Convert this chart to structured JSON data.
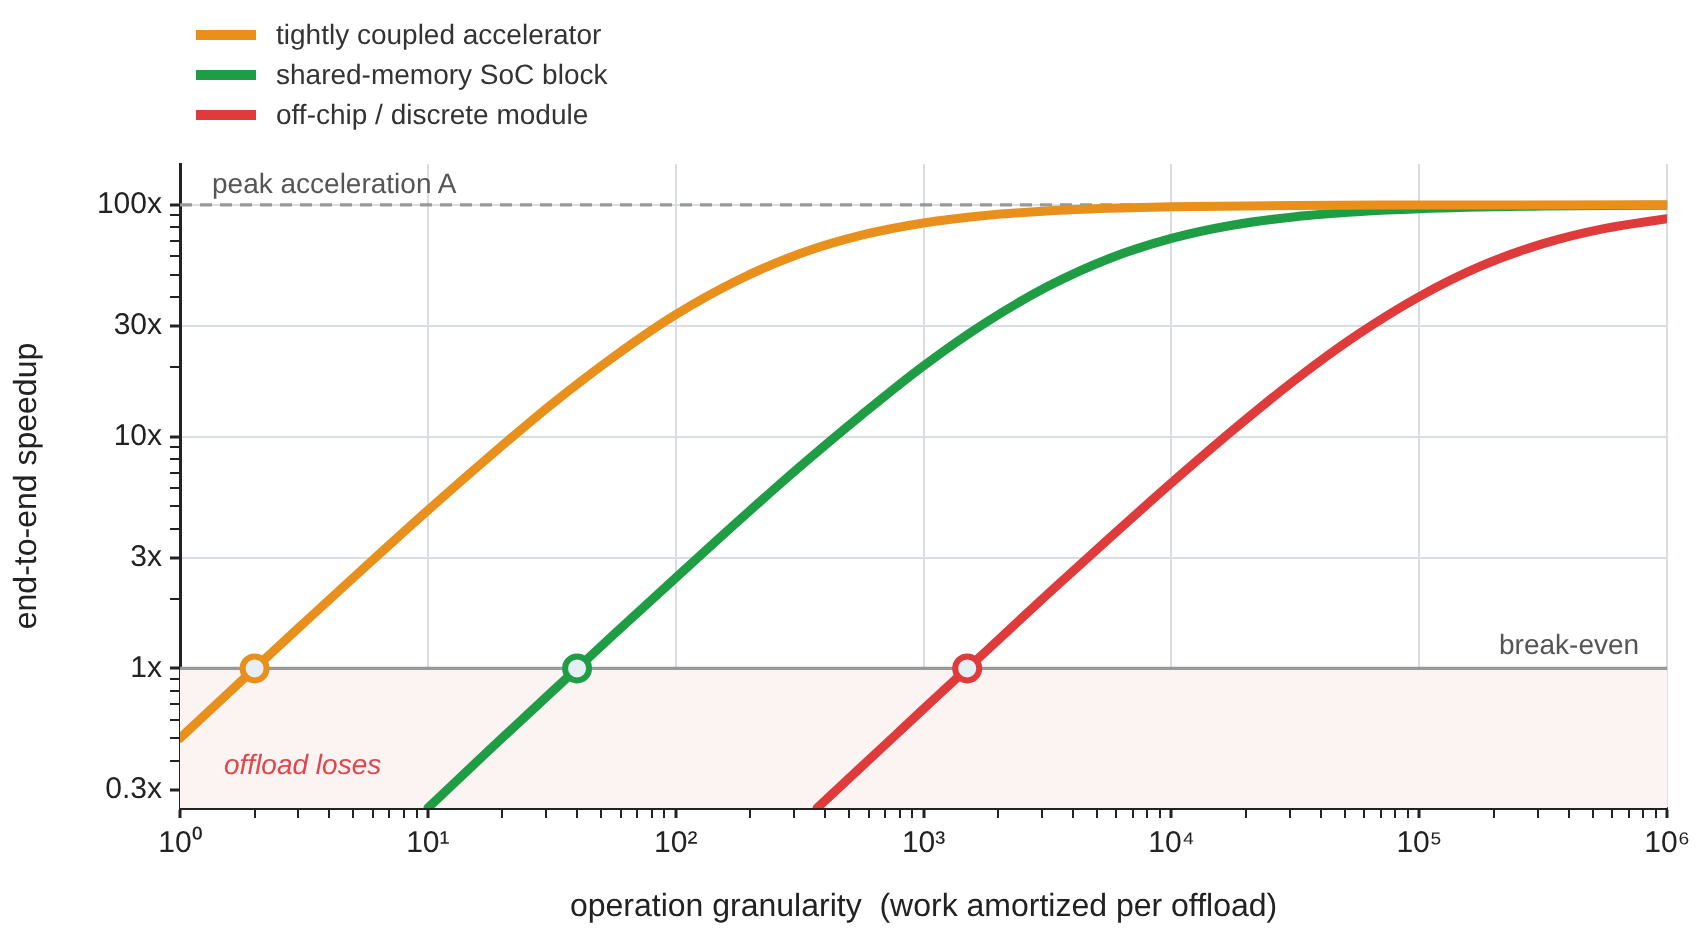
{
  "chart_data": {
    "type": "line",
    "xlabel": "operation granularity  (work amortized per offload)",
    "ylabel": "end-to-end speedup",
    "log": "xy",
    "grid": true,
    "legend": "top left",
    "marker": "none",
    "line_style": "solid",
    "xlim": [
      1,
      1000000
    ],
    "ylim": [
      0.25,
      150
    ],
    "xticks": [
      {
        "value": 1,
        "label": "10⁰"
      },
      {
        "value": 2,
        "label": null
      },
      {
        "value": 3,
        "label": null
      },
      {
        "value": 4,
        "label": null
      },
      {
        "value": 5,
        "label": null
      },
      {
        "value": 6,
        "label": null
      },
      {
        "value": 7,
        "label": null
      },
      {
        "value": 8,
        "label": null
      },
      {
        "value": 9,
        "label": null
      },
      {
        "value": 10,
        "label": "10¹"
      },
      {
        "value": 20,
        "label": null
      },
      {
        "value": 30,
        "label": null
      },
      {
        "value": 40,
        "label": null
      },
      {
        "value": 50,
        "label": null
      },
      {
        "value": 60,
        "label": null
      },
      {
        "value": 70,
        "label": null
      },
      {
        "value": 80,
        "label": null
      },
      {
        "value": 90,
        "label": null
      },
      {
        "value": 100,
        "label": "10²"
      },
      {
        "value": 200,
        "label": null
      },
      {
        "value": 300,
        "label": null
      },
      {
        "value": 400,
        "label": null
      },
      {
        "value": 500,
        "label": null
      },
      {
        "value": 600,
        "label": null
      },
      {
        "value": 700,
        "label": null
      },
      {
        "value": 800,
        "label": null
      },
      {
        "value": 900,
        "label": null
      },
      {
        "value": 1000,
        "label": "10³"
      },
      {
        "value": 2000,
        "label": null
      },
      {
        "value": 3000,
        "label": null
      },
      {
        "value": 4000,
        "label": null
      },
      {
        "value": 5000,
        "label": null
      },
      {
        "value": 6000,
        "label": null
      },
      {
        "value": 7000,
        "label": null
      },
      {
        "value": 8000,
        "label": null
      },
      {
        "value": 9000,
        "label": null
      },
      {
        "value": 10000,
        "label": "10⁴"
      },
      {
        "value": 20000,
        "label": null
      },
      {
        "value": 30000,
        "label": null
      },
      {
        "value": 40000,
        "label": null
      },
      {
        "value": 50000,
        "label": null
      },
      {
        "value": 60000,
        "label": null
      },
      {
        "value": 70000,
        "label": null
      },
      {
        "value": 80000,
        "label": null
      },
      {
        "value": 90000,
        "label": null
      },
      {
        "value": 100000,
        "label": "10⁵"
      },
      {
        "value": 200000,
        "label": null
      },
      {
        "value": 300000,
        "label": null
      },
      {
        "value": 400000,
        "label": null
      },
      {
        "value": 500000,
        "label": null
      },
      {
        "value": 600000,
        "label": null
      },
      {
        "value": 700000,
        "label": null
      },
      {
        "value": 800000,
        "label": null
      },
      {
        "value": 900000,
        "label": null
      },
      {
        "value": 1000000,
        "label": "10⁶"
      }
    ],
    "yticks": [
      {
        "value": 0.3,
        "label": "0.3x"
      },
      {
        "value": 0.4,
        "label": null
      },
      {
        "value": 0.5,
        "label": null
      },
      {
        "value": 0.6,
        "label": null
      },
      {
        "value": 0.7,
        "label": null
      },
      {
        "value": 0.8,
        "label": null
      },
      {
        "value": 0.9,
        "label": null
      },
      {
        "value": 1,
        "label": "1x"
      },
      {
        "value": 2,
        "label": null
      },
      {
        "value": 3,
        "label": "3x"
      },
      {
        "value": 4,
        "label": null
      },
      {
        "value": 5,
        "label": null
      },
      {
        "value": 6,
        "label": null
      },
      {
        "value": 7,
        "label": null
      },
      {
        "value": 8,
        "label": null
      },
      {
        "value": 9,
        "label": null
      },
      {
        "value": 10,
        "label": "10x"
      },
      {
        "value": 20,
        "label": null
      },
      {
        "value": 30,
        "label": "30x"
      },
      {
        "value": 40,
        "label": null
      },
      {
        "value": 50,
        "label": null
      },
      {
        "value": 60,
        "label": null
      },
      {
        "value": 70,
        "label": null
      },
      {
        "value": 80,
        "label": null
      },
      {
        "value": 90,
        "label": null
      },
      {
        "value": 100,
        "label": "100x"
      }
    ],
    "series": [
      {
        "name": "tightly coupled accelerator",
        "color": "#e88f1c",
        "x": [
          1,
          1.78,
          2,
          3.16,
          5.62,
          10,
          17.8,
          31.6,
          56.2,
          100,
          178,
          316,
          562,
          1000,
          1778,
          3162,
          5623,
          10000,
          31623,
          100000,
          1000000
        ],
        "values": [
          0.5,
          0.89,
          1,
          1.57,
          2.76,
          4.81,
          8.24,
          13.8,
          22.1,
          33.6,
          47.3,
          61.5,
          74,
          83.5,
          90,
          94.1,
          96.6,
          98.1,
          99.4,
          99.8,
          100
        ]
      },
      {
        "name": "shared-memory SoC block",
        "color": "#1f9d45",
        "x": [
          10,
          17.78,
          31.62,
          40,
          56.23,
          100,
          177.8,
          316.2,
          562.3,
          1000,
          1778,
          3162,
          5623,
          10000,
          17783,
          31623,
          56234,
          100000,
          316228,
          1000000
        ],
        "values": [
          0.25,
          0.447,
          0.792,
          1,
          1.4,
          2.46,
          4.3,
          7.4,
          12.4,
          20.2,
          31,
          44.4,
          58.7,
          71.6,
          81.8,
          88.9,
          93.4,
          96.2,
          98.8,
          99.6
        ]
      },
      {
        "name": "off-chip / discrete module",
        "color": "#e03b3b",
        "x": [
          372,
          562.3,
          1000,
          1500,
          1778,
          3162,
          5623,
          10000,
          17783,
          31623,
          56234,
          100000,
          177828,
          316228,
          562341,
          1000000
        ],
        "values": [
          0.25,
          0.377,
          0.669,
          1,
          1.18,
          2.09,
          3.65,
          6.31,
          10.7,
          17.6,
          27.5,
          40.2,
          54.5,
          68,
          79.1,
          87.1
        ]
      },
      {
        "type": "scatter",
        "marker": "circle",
        "x": [
          2,
          40,
          1500
        ],
        "values": [
          1,
          1,
          1
        ],
        "colors": [
          "#e88f1c",
          "#1f9d45",
          "#e03b3b"
        ]
      }
    ],
    "ref_lines": [
      {
        "axis": "y",
        "value": 100,
        "label": "peak acceleration A",
        "color": "#999999",
        "line_style": "dashed"
      },
      {
        "axis": "y",
        "value": 1,
        "label": "break-even",
        "color": "#999999",
        "line_style": "solid"
      }
    ],
    "bands": [
      {
        "axis": "y",
        "from": 0.25,
        "to": 1,
        "label": "offload loses",
        "color": "#fcf3f3"
      }
    ]
  }
}
